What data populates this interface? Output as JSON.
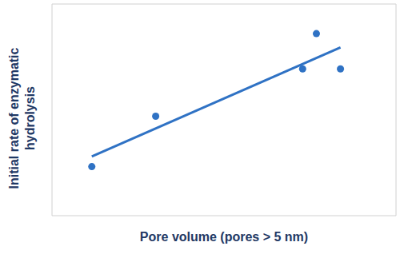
{
  "chart_data": {
    "type": "scatter",
    "xlabel": "Pore volume (pores > 5 nm)",
    "ylabel": "Initial rate of enzymatic hydrolysis",
    "x": [
      0.81,
      2.11,
      5.1,
      5.38,
      5.87
    ],
    "values": [
      1.39,
      2.82,
      4.16,
      5.16,
      4.16
    ],
    "color": "#2f72c4",
    "marker": "circle",
    "trend_line": {
      "x": [
        0.81,
        5.87
      ],
      "values": [
        1.68,
        4.77
      ]
    },
    "xlim": [
      0,
      7
    ],
    "ylim": [
      0,
      6
    ],
    "xticks": [
      0,
      1,
      2,
      3,
      4,
      5,
      6,
      7
    ],
    "yticks": [
      0,
      1,
      2,
      3,
      4,
      5,
      6
    ],
    "grid": true,
    "tick_labels": false
  }
}
